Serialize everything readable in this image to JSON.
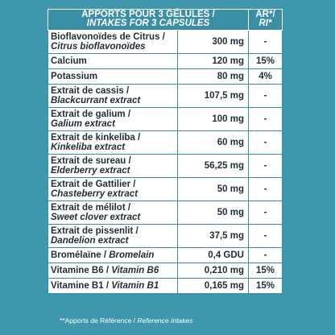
{
  "header": {
    "col1_line1": "APPORTS POUR 3 GÉLULES /",
    "col1_line2": "INTAKES FOR 3 CAPSULES",
    "col3_line1": "AR*/",
    "col3_line2": "RI*"
  },
  "rows": [
    {
      "fr": "Bioflavonoïdes de Citrus /",
      "en": "Citrus bioflavonoïdes",
      "amount": "300 mg",
      "ar": "-"
    },
    {
      "fr": "Calcium",
      "en": "",
      "amount": "120 mg",
      "ar": "15%"
    },
    {
      "fr": "Potassium",
      "en": "",
      "amount": "80 mg",
      "ar": "4%"
    },
    {
      "fr": "Extrait de cassis /",
      "en": "Blackcurrant extract",
      "amount": "107,5 mg",
      "ar": "-"
    },
    {
      "fr": "Extrait de galium /",
      "en": "Galium extract",
      "amount": "100 mg",
      "ar": "-"
    },
    {
      "fr": "Extrait de kinkeliba /",
      "en": "Kinkeliba extract",
      "amount": "60 mg",
      "ar": "-"
    },
    {
      "fr": "Extrait de sureau /",
      "en": "Elderberry extract",
      "amount": "56,25 mg",
      "ar": "-"
    },
    {
      "fr": "Extrait de Gattilier /",
      "en": "Chasteberry extract",
      "amount": "50 mg",
      "ar": "-"
    },
    {
      "fr": "Extrait de mélilot /",
      "en": "Sweet clover extract",
      "amount": "50 mg",
      "ar": "-"
    },
    {
      "fr": "Extrait de pissenlit /",
      "en": "Dandelion extract",
      "amount": "37,5 mg",
      "ar": "-"
    },
    {
      "fr": "Bromélaïne / ",
      "en": "Bromelain",
      "amount": "0,4 GDU",
      "ar": "-"
    },
    {
      "fr": "Vitamine B6 / ",
      "en": "Vitamin B6",
      "amount": "0,210 mg",
      "ar": "15%"
    },
    {
      "fr": "Vitamine B1 / ",
      "en": "Vitamin B1",
      "amount": "0,165 mg",
      "ar": "15%"
    }
  ],
  "footnote": {
    "fr": "**Apports de Référence /",
    "en": "Reference Intakes"
  }
}
